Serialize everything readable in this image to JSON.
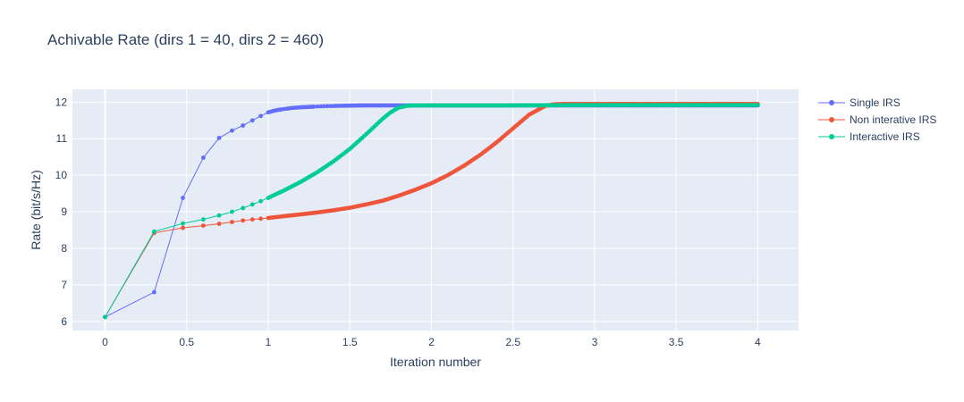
{
  "chart_data": {
    "type": "line",
    "title": "Achivable Rate (dirs 1 = 40, dirs 2 = 460)",
    "xlabel": "Iteration number",
    "ylabel": "Rate (bit/s/Hz)",
    "xlim": [
      -0.2,
      4.25
    ],
    "ylim": [
      5.75,
      12.35
    ],
    "xticks": [
      0,
      0.5,
      1,
      1.5,
      2,
      2.5,
      3,
      3.5,
      4
    ],
    "xtick_labels": [
      "0",
      "0.5",
      "1",
      "1.5",
      "2",
      "2.5",
      "3",
      "3.5",
      "4"
    ],
    "yticks": [
      6,
      7,
      8,
      9,
      10,
      11,
      12
    ],
    "ytick_labels": [
      "6",
      "7",
      "8",
      "9",
      "10",
      "11",
      "12"
    ],
    "grid": true,
    "legend_position": "top-right",
    "series": [
      {
        "name": "Single IRS",
        "color": "#636efa",
        "mode": "lines+markers",
        "x": [
          0,
          0.301,
          0.477,
          0.602,
          0.699,
          0.778,
          0.845,
          0.903,
          0.954,
          1.0,
          1.041,
          1.079,
          1.114,
          1.146,
          1.176,
          1.204,
          1.23,
          1.255,
          1.279,
          1.301,
          1.322,
          1.342,
          1.362,
          1.38,
          1.398,
          1.415,
          1.431,
          1.447,
          1.462,
          1.477,
          1.491,
          1.505,
          1.519,
          1.531,
          1.544,
          1.556,
          1.568,
          1.58,
          1.591,
          1.602,
          4.0
        ],
        "y": [
          6.12,
          6.8,
          9.38,
          10.48,
          11.02,
          11.22,
          11.36,
          11.5,
          11.62,
          11.72,
          11.77,
          11.8,
          11.82,
          11.84,
          11.85,
          11.86,
          11.865,
          11.87,
          11.875,
          11.88,
          11.885,
          11.888,
          11.89,
          11.892,
          11.894,
          11.896,
          11.898,
          11.9,
          11.9,
          11.902,
          11.903,
          11.904,
          11.905,
          11.906,
          11.907,
          11.908,
          11.908,
          11.909,
          11.909,
          11.91,
          11.91
        ]
      },
      {
        "name": "Non interative IRS",
        "color": "#ef553b",
        "mode": "lines+markers",
        "x": [
          0,
          0.301,
          0.477,
          0.602,
          0.699,
          0.778,
          0.845,
          0.903,
          0.954,
          1.0,
          1.1,
          1.2,
          1.3,
          1.4,
          1.5,
          1.6,
          1.7,
          1.8,
          1.9,
          2.0,
          2.1,
          2.2,
          2.3,
          2.4,
          2.5,
          2.6,
          2.7,
          2.75,
          2.8,
          3.0,
          3.5,
          4.0
        ],
        "y": [
          6.12,
          8.42,
          8.56,
          8.62,
          8.67,
          8.72,
          8.76,
          8.79,
          8.81,
          8.83,
          8.88,
          8.93,
          8.98,
          9.04,
          9.11,
          9.2,
          9.3,
          9.44,
          9.6,
          9.78,
          10.0,
          10.26,
          10.56,
          10.9,
          11.28,
          11.66,
          11.9,
          11.94,
          11.95,
          11.95,
          11.95,
          11.95
        ]
      },
      {
        "name": "Interactive IRS",
        "color": "#00cc96",
        "mode": "lines+markers",
        "x": [
          0,
          0.301,
          0.477,
          0.602,
          0.699,
          0.778,
          0.845,
          0.903,
          0.954,
          1.0,
          1.1,
          1.2,
          1.3,
          1.4,
          1.5,
          1.6,
          1.7,
          1.75,
          1.8,
          1.85,
          1.9,
          2.0,
          2.5,
          3.0,
          3.5,
          4.0
        ],
        "y": [
          6.12,
          8.46,
          8.68,
          8.79,
          8.9,
          9.0,
          9.1,
          9.2,
          9.29,
          9.38,
          9.59,
          9.82,
          10.08,
          10.38,
          10.72,
          11.12,
          11.54,
          11.72,
          11.85,
          11.9,
          11.91,
          11.91,
          11.91,
          11.92,
          11.92,
          11.92
        ]
      }
    ]
  }
}
